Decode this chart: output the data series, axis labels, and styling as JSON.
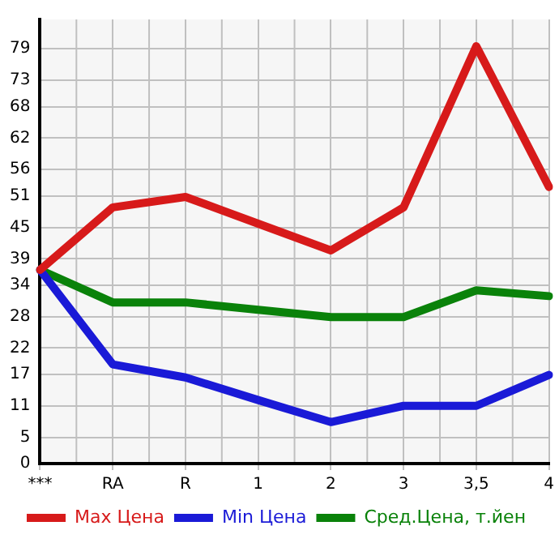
{
  "chart_data": {
    "type": "line",
    "categories": [
      "***",
      "RA",
      "R",
      "1",
      "2",
      "3",
      "3,5",
      "4"
    ],
    "series": [
      {
        "name": "Max Цена",
        "color": "#d71a1a",
        "values": [
          36.9,
          48.8,
          50.8,
          45.7,
          40.6,
          48.8,
          79.5,
          52.7
        ]
      },
      {
        "name": "Min Цена",
        "color": "#1a1ad7",
        "values": [
          36.9,
          18.9,
          16.4,
          12.1,
          7.9,
          11.0,
          11.0,
          16.9
        ]
      },
      {
        "name": "Сред.Цена, т.йен",
        "color": "#0a820a",
        "values": [
          36.9,
          30.7,
          30.7,
          29.3,
          27.9,
          27.9,
          33.0,
          31.9
        ]
      }
    ],
    "ylim": [
      0,
      84.6
    ],
    "yticks": [
      0,
      5,
      11,
      17,
      22,
      28,
      34,
      39,
      45,
      51,
      56,
      62,
      68,
      73,
      79
    ],
    "grid": true,
    "legend": "bottom",
    "marker": "none",
    "line_style": "solid"
  }
}
